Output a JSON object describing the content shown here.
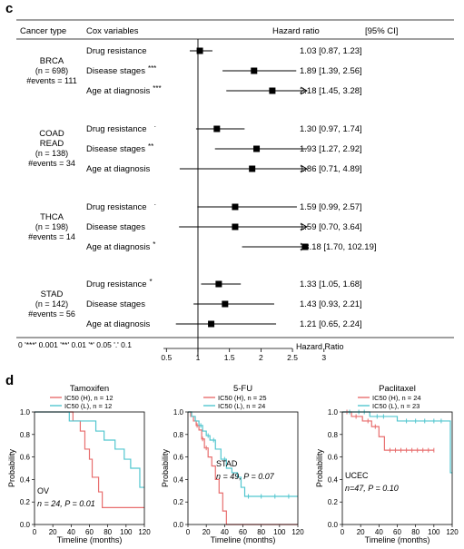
{
  "panel_c": {
    "label": "c",
    "headers": {
      "cancer_type": "Cancer type",
      "cox_variables": "Cox variables",
      "hazard_ratio": "Hazard ratio",
      "ci": "[95% CI]"
    },
    "groups": [
      {
        "name_lines": [
          "BRCA"
        ],
        "n_text": "(n = 698)",
        "events": "#events = 111",
        "rows": [
          {
            "label": "Drug resistance",
            "stars": "",
            "hr": 1.03,
            "lo": 0.87,
            "hi": 1.23,
            "text": "1.03 [0.87, 1.23]",
            "arrow": false
          },
          {
            "label": "Disease stages",
            "stars": "***",
            "hr": 1.89,
            "lo": 1.39,
            "hi": 2.56,
            "text": "1.89 [1.39, 2.56]",
            "arrow": false
          },
          {
            "label": "Age at diagnosis",
            "stars": "***",
            "hr": 2.18,
            "lo": 1.45,
            "hi": 3.28,
            "text": "2.18 [1.45, 3.28]",
            "arrow": true
          }
        ]
      },
      {
        "name_lines": [
          "COAD",
          "READ"
        ],
        "n_text": "(n = 138)",
        "events": "#events = 34",
        "rows": [
          {
            "label": "Drug resistance",
            "stars": "·",
            "hr": 1.3,
            "lo": 0.97,
            "hi": 1.74,
            "text": "1.30 [0.97, 1.74]",
            "arrow": false
          },
          {
            "label": "Disease stages",
            "stars": "**",
            "hr": 1.93,
            "lo": 1.27,
            "hi": 2.92,
            "text": "1.93 [1.27, 2.92]",
            "arrow": false
          },
          {
            "label": "Age at diagnosis",
            "stars": "",
            "hr": 1.86,
            "lo": 0.71,
            "hi": 4.89,
            "text": "1.86 [0.71, 4.89]",
            "arrow": true
          }
        ]
      },
      {
        "name_lines": [
          "THCA"
        ],
        "n_text": "(n = 198)",
        "events": "#events = 14",
        "rows": [
          {
            "label": "Drug resistance",
            "stars": "·",
            "hr": 1.59,
            "lo": 0.99,
            "hi": 2.57,
            "text": "1.59 [0.99, 2.57]",
            "arrow": false
          },
          {
            "label": "Disease stages",
            "stars": "",
            "hr": 1.59,
            "lo": 0.7,
            "hi": 3.64,
            "text": "1.59 [0.70, 3.64]",
            "arrow": true
          },
          {
            "label": "Age at diagnosis",
            "stars": "*",
            "hr": 13.18,
            "lo": 1.7,
            "hi": 102.19,
            "text": "13.18 [1.70, 102.19]",
            "arrow": true
          }
        ]
      },
      {
        "name_lines": [
          "STAD"
        ],
        "n_text": "(n = 142)",
        "events": "#events = 56",
        "rows": [
          {
            "label": "Drug resistance",
            "stars": "*",
            "hr": 1.33,
            "lo": 1.05,
            "hi": 1.68,
            "text": "1.33 [1.05, 1.68]",
            "arrow": false
          },
          {
            "label": "Disease stages",
            "stars": "",
            "hr": 1.43,
            "lo": 0.93,
            "hi": 2.21,
            "text": "1.43 [0.93, 2.21]",
            "arrow": false
          },
          {
            "label": "Age at diagnosis",
            "stars": "",
            "hr": 1.21,
            "lo": 0.65,
            "hi": 2.24,
            "text": "1.21 [0.65, 2.24]",
            "arrow": false
          }
        ]
      }
    ],
    "signif_legend": "0 '***' 0.001 '**' 0.01 '*' 0.05 '.' 0.1",
    "x_ticks": [
      "0.5",
      "1",
      "1.5",
      "2",
      "2.5",
      "3"
    ],
    "x_label": "Hazard Ratio"
  },
  "panel_d": {
    "label": "d"
  },
  "chart_data": [
    {
      "type": "line",
      "title": "Tamoxifen",
      "xlabel": "Timeline (months)",
      "ylabel": "Probability",
      "xlim": [
        0,
        120
      ],
      "ylim": [
        0,
        1
      ],
      "xticks": [
        "0",
        "20",
        "40",
        "60",
        "80",
        "100",
        "120"
      ],
      "yticks": [
        "0.0",
        "0.2",
        "0.4",
        "0.6",
        "0.8",
        "1.0"
      ],
      "legend": [
        "IC50 (H), n = 12",
        "IC50 (L), n = 12"
      ],
      "annotation": [
        "OV",
        "n = 24, P = 0.01"
      ],
      "colors": [
        "#e86e6e",
        "#52c6cf"
      ],
      "series": [
        {
          "name": "IC50 (H), n = 12",
          "x": [
            0,
            42,
            50,
            55,
            60,
            63,
            70,
            74,
            120
          ],
          "y": [
            1.0,
            0.92,
            0.83,
            0.67,
            0.58,
            0.42,
            0.29,
            0.15,
            0.15
          ],
          "censor": []
        },
        {
          "name": "IC50 (L), n = 12",
          "x": [
            0,
            38,
            67,
            76,
            88,
            98,
            105,
            115,
            120
          ],
          "y": [
            1.0,
            0.92,
            0.83,
            0.75,
            0.67,
            0.58,
            0.5,
            0.33,
            0.33
          ],
          "censor": []
        }
      ]
    },
    {
      "type": "line",
      "title": "5-FU",
      "xlabel": "Timeline (months)",
      "ylabel": "Probability",
      "xlim": [
        0,
        120
      ],
      "ylim": [
        0,
        1
      ],
      "xticks": [
        "0",
        "20",
        "40",
        "60",
        "80",
        "100",
        "120"
      ],
      "yticks": [
        "0.0",
        "0.2",
        "0.4",
        "0.6",
        "0.8",
        "1.0"
      ],
      "legend": [
        "IC50 (H), n = 25",
        "IC50 (L), n = 24"
      ],
      "annotation": [
        "STAD",
        "n = 49, P = 0.07"
      ],
      "colors": [
        "#e86e6e",
        "#52c6cf"
      ],
      "series": [
        {
          "name": "IC50 (H), n = 25",
          "x": [
            0,
            3,
            6,
            9,
            12,
            15,
            18,
            22,
            26,
            30,
            34,
            38,
            42,
            120
          ],
          "y": [
            1.0,
            0.96,
            0.92,
            0.88,
            0.84,
            0.76,
            0.68,
            0.6,
            0.52,
            0.4,
            0.28,
            0.12,
            0.0,
            0.0
          ],
          "censor": [
            10,
            16,
            20
          ]
        },
        {
          "name": "IC50 (L), n = 24",
          "x": [
            0,
            4,
            8,
            12,
            16,
            20,
            24,
            30,
            36,
            42,
            48,
            54,
            58,
            62,
            120
          ],
          "y": [
            1.0,
            0.96,
            0.92,
            0.88,
            0.83,
            0.79,
            0.75,
            0.67,
            0.58,
            0.5,
            0.46,
            0.42,
            0.33,
            0.25,
            0.25
          ],
          "censor": [
            14,
            22,
            28,
            40,
            66,
            80,
            95,
            110
          ]
        }
      ]
    },
    {
      "type": "line",
      "title": "Paclitaxel",
      "xlabel": "Timeline (months)",
      "ylabel": "Probability",
      "xlim": [
        0,
        120
      ],
      "ylim": [
        0,
        1
      ],
      "xticks": [
        "0",
        "20",
        "40",
        "60",
        "80",
        "100",
        "120"
      ],
      "yticks": [
        "0.0",
        "0.2",
        "0.4",
        "0.6",
        "0.8",
        "1.0"
      ],
      "legend": [
        "IC50 (H), n = 24",
        "IC50 (L), n = 23"
      ],
      "annotation": [
        "UCEC",
        "n=47, P = 0.10"
      ],
      "colors": [
        "#e86e6e",
        "#52c6cf"
      ],
      "series": [
        {
          "name": "IC50 (H), n = 24",
          "x": [
            0,
            10,
            22,
            32,
            40,
            46,
            100
          ],
          "y": [
            1.0,
            0.96,
            0.92,
            0.87,
            0.78,
            0.66,
            0.66
          ],
          "censor": [
            5,
            15,
            28,
            36,
            52,
            58,
            64,
            70,
            76,
            82,
            88,
            94,
            100
          ]
        },
        {
          "name": "IC50 (L), n = 23",
          "x": [
            0,
            30,
            60,
            115,
            118,
            120
          ],
          "y": [
            1.0,
            0.96,
            0.92,
            0.92,
            0.46,
            0.46
          ],
          "censor": [
            8,
            18,
            24,
            38,
            45,
            70,
            80,
            90,
            100,
            108
          ]
        }
      ]
    }
  ]
}
